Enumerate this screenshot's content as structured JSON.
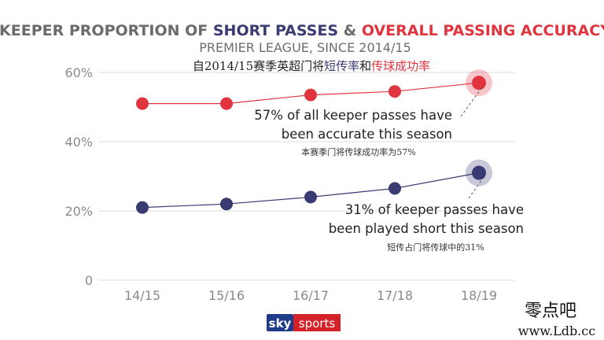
{
  "header": {
    "title_part1": "KEEPER PROPORTION OF ",
    "title_part2": "SHORT PASSES",
    "title_part3": " & ",
    "title_part4": "OVERALL PASSING ACCURACY",
    "subtitle": "PREMIER LEAGUE, SINCE 2014/15",
    "subtitle_cn_part1": "自2014/15赛季英超门将",
    "subtitle_cn_part2": "短传率",
    "subtitle_cn_part3": "和",
    "subtitle_cn_part4": "传球成功率"
  },
  "colors": {
    "accuracy": "#e0343f",
    "short": "#3a3b72",
    "title_gray": "#6b6b6b",
    "sky_red": "#d4222b"
  },
  "annotations": {
    "accuracy_line1": "57% of all keeper passes have",
    "accuracy_line2": "been accurate this season",
    "accuracy_cn": "本赛季门将传球成功率为57%",
    "short_line1": "31% of keeper passes have",
    "short_line2": "been played short this season",
    "short_cn": "短传占门将传球中的31%"
  },
  "logo": {
    "sky": "sky",
    "sports": "sports"
  },
  "watermark": {
    "line1": "零点吧",
    "line2": "www.Ldb.cc"
  },
  "chart_data": {
    "type": "line",
    "categories": [
      "14/15",
      "15/16",
      "16/17",
      "17/18",
      "18/19"
    ],
    "y_ticks": [
      0,
      20,
      40,
      60
    ],
    "y_tick_labels": [
      "0",
      "20%",
      "40%",
      "60%"
    ],
    "ylim": [
      0,
      60
    ],
    "grid": true,
    "series": [
      {
        "key": "accuracy",
        "values": [
          51,
          51,
          53.5,
          54.5,
          57
        ]
      },
      {
        "key": "short",
        "values": [
          21,
          22,
          24,
          26.5,
          31
        ]
      }
    ]
  }
}
